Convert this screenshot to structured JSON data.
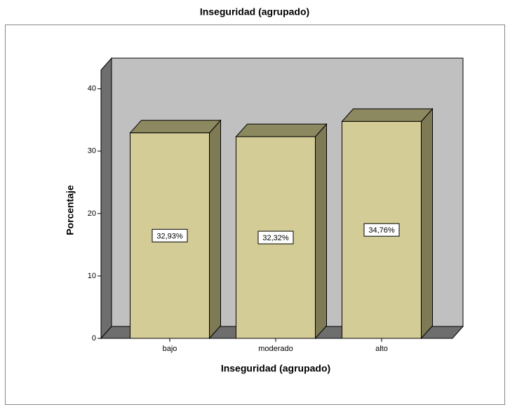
{
  "chart_data": {
    "type": "bar3d",
    "title": "Inseguridad (agrupado)",
    "x_label": "Inseguridad (agrupado)",
    "y_label": "Porcentaje",
    "categories": [
      "bajo",
      "moderado",
      "alto"
    ],
    "values": [
      32.93,
      32.32,
      34.76
    ],
    "value_labels": [
      "32,93%",
      "32,32%",
      "34,76%"
    ],
    "color": "#d4cc96",
    "ylim": [
      0,
      43
    ],
    "yticks": [
      0,
      10,
      20,
      30,
      40
    ]
  }
}
